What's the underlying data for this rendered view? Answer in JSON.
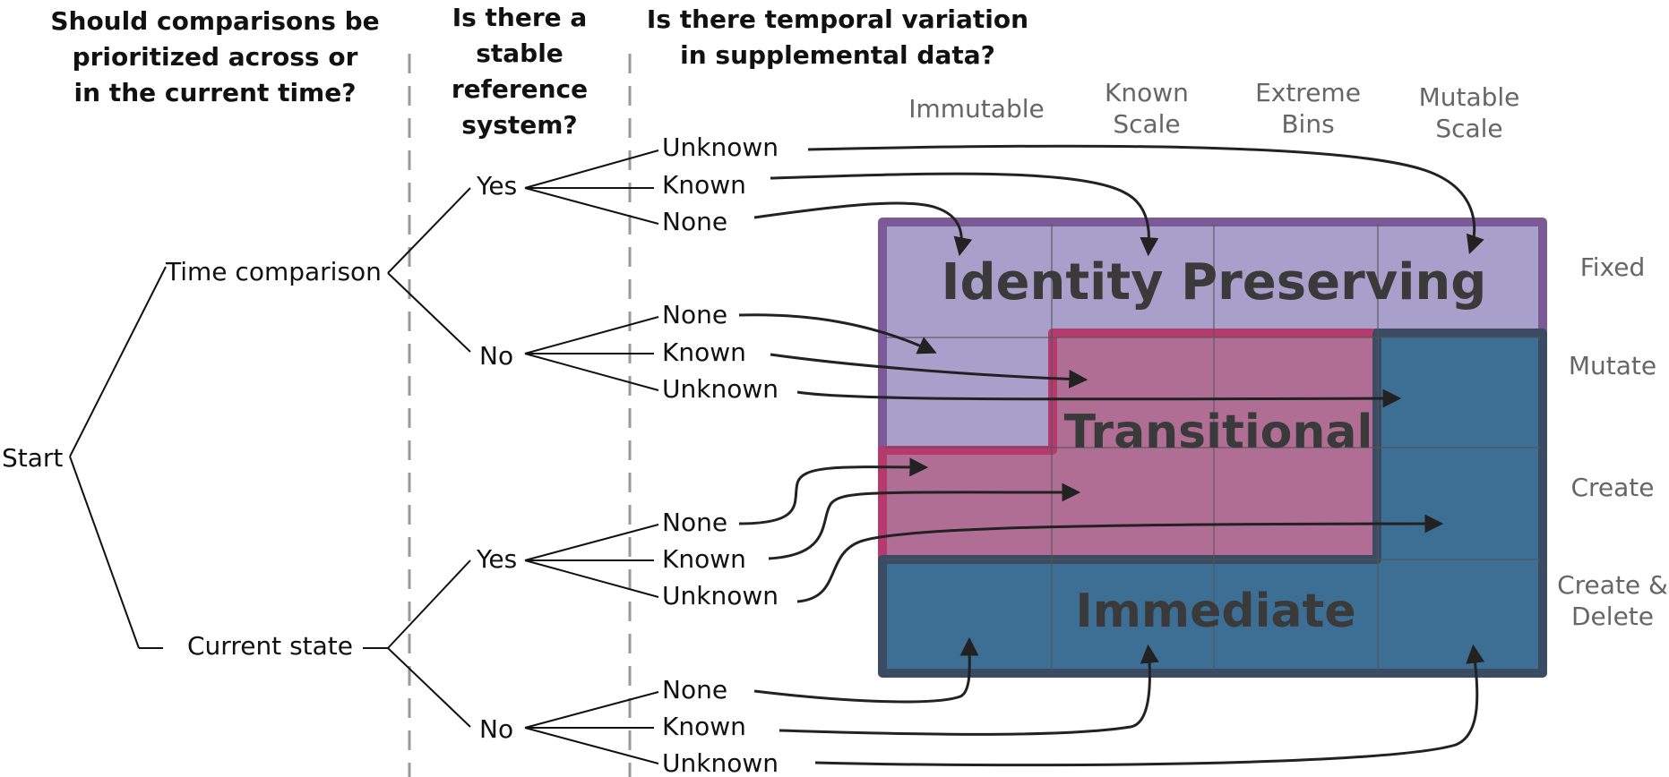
{
  "questions": {
    "q1": [
      "Should comparisons be",
      "prioritized across or",
      "in the current time?"
    ],
    "q2": [
      "Is there a stable",
      "reference",
      "system?"
    ],
    "q3": [
      "Is there temporal variation",
      "in supplemental data?"
    ]
  },
  "tree": {
    "root": "Start",
    "level1": [
      "Time comparison",
      "Current state"
    ],
    "level2": [
      "Yes",
      "No",
      "Yes",
      "No"
    ],
    "leaves": [
      [
        "Unknown",
        "Known",
        "None"
      ],
      [
        "None",
        "Known",
        "Unknown"
      ],
      [
        "None",
        "Known",
        "Unknown"
      ],
      [
        "None",
        "Known",
        "Unknown"
      ]
    ]
  },
  "grid": {
    "columns": [
      [
        "Immutable"
      ],
      [
        "Known",
        "Scale"
      ],
      [
        "Extreme",
        "Bins"
      ],
      [
        "Mutable",
        "Scale"
      ]
    ],
    "rows": [
      [
        "Fixed"
      ],
      [
        "Mutate"
      ],
      [
        "Create"
      ],
      [
        "Create &",
        "Delete"
      ]
    ],
    "zones": {
      "identity": {
        "label": "Identity Preserving",
        "fill": "#a89fcb",
        "border": "#7b5a97"
      },
      "transitional": {
        "label": "Transitional",
        "fill": "#b06e95",
        "border": "#b53a6e"
      },
      "immediate": {
        "label": "Immediate",
        "fill": "#3d6e94",
        "border": "#3b4b64"
      }
    }
  },
  "colors": {
    "text": "#111111",
    "muted": "#666666",
    "divider": "#999999",
    "arrow": "#222222"
  }
}
